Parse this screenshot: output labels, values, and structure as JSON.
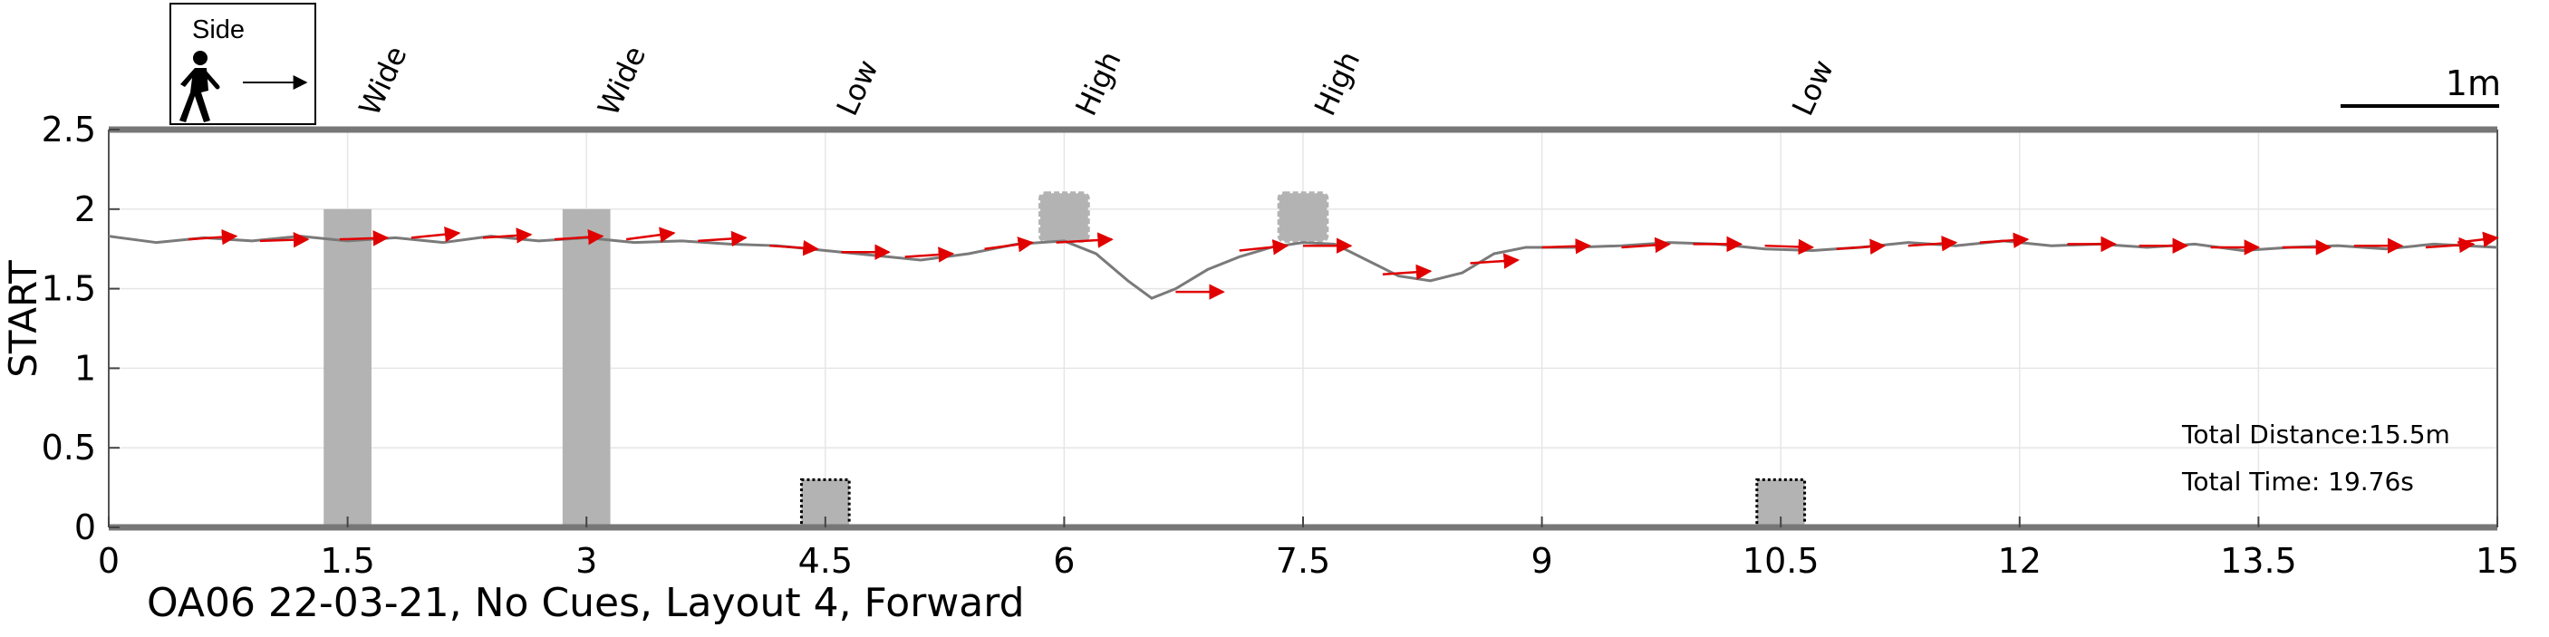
{
  "caption": "OA06 22-03-21, No Cues, Layout 4, Forward",
  "legend_box": {
    "label": "Side",
    "icon": "walking-person-icon"
  },
  "scale_bar": {
    "label": "1m",
    "length_m": 1
  },
  "annotations": {
    "total_distance": "Total Distance:15.5m",
    "total_time": "Total Time: 19.76s"
  },
  "colors": {
    "path": "#7a7a7a",
    "arrow": "#e00000",
    "obstacle": "#b3b3b3",
    "axis": "#777777",
    "grid": "#e6e6e6"
  },
  "chart_data": {
    "type": "line",
    "xlim": [
      0,
      15
    ],
    "ylim": [
      0,
      2.5
    ],
    "ylabel": "START",
    "xlabel": "",
    "grid": true,
    "xticks": [
      0,
      1.5,
      3,
      4.5,
      6,
      7.5,
      9,
      10.5,
      12,
      13.5,
      15
    ],
    "xtick_labels": [
      "0",
      "1.5",
      "3",
      "4.5",
      "6",
      "7.5",
      "9",
      "10.5",
      "12",
      "13.5",
      "15"
    ],
    "yticks": [
      0,
      0.5,
      1,
      1.5,
      2,
      2.5
    ],
    "ytick_labels": [
      "0",
      "0.5",
      "1",
      "1.5",
      "2",
      "2.5"
    ],
    "obstacles": [
      {
        "label": "Wide",
        "x": 1.5,
        "y0": 0,
        "y1": 2.0,
        "width": 0.3,
        "style": "solid"
      },
      {
        "label": "Wide",
        "x": 3.0,
        "y0": 0,
        "y1": 2.0,
        "width": 0.3,
        "style": "solid"
      },
      {
        "label": "Low",
        "x": 4.5,
        "y0": 0,
        "y1": 0.3,
        "width": 0.3,
        "style": "dotted"
      },
      {
        "label": "High",
        "x": 6.0,
        "y0": 1.8,
        "y1": 2.1,
        "width": 0.3,
        "style": "bumpy"
      },
      {
        "label": "High",
        "x": 7.5,
        "y0": 1.8,
        "y1": 2.1,
        "width": 0.3,
        "style": "bumpy"
      },
      {
        "label": "Low",
        "x": 10.5,
        "y0": 0,
        "y1": 0.3,
        "width": 0.3,
        "style": "dotted"
      }
    ],
    "path": {
      "x": [
        0,
        0.3,
        0.6,
        0.9,
        1.2,
        1.5,
        1.8,
        2.1,
        2.4,
        2.7,
        3.0,
        3.3,
        3.6,
        3.9,
        4.2,
        4.5,
        4.8,
        5.1,
        5.4,
        5.7,
        6.0,
        6.2,
        6.4,
        6.55,
        6.7,
        6.9,
        7.1,
        7.3,
        7.5,
        7.7,
        7.9,
        8.1,
        8.3,
        8.5,
        8.7,
        8.9,
        9.2,
        9.5,
        9.8,
        10.1,
        10.4,
        10.7,
        11.0,
        11.3,
        11.6,
        11.9,
        12.2,
        12.5,
        12.8,
        13.1,
        13.4,
        13.7,
        14.0,
        14.3,
        14.6,
        15.0
      ],
      "y": [
        1.83,
        1.79,
        1.82,
        1.8,
        1.83,
        1.8,
        1.82,
        1.79,
        1.83,
        1.8,
        1.82,
        1.79,
        1.8,
        1.78,
        1.77,
        1.74,
        1.71,
        1.68,
        1.72,
        1.78,
        1.8,
        1.72,
        1.55,
        1.44,
        1.5,
        1.62,
        1.7,
        1.76,
        1.79,
        1.78,
        1.68,
        1.58,
        1.55,
        1.6,
        1.72,
        1.76,
        1.76,
        1.77,
        1.79,
        1.78,
        1.75,
        1.74,
        1.76,
        1.79,
        1.77,
        1.8,
        1.77,
        1.78,
        1.76,
        1.78,
        1.74,
        1.76,
        1.77,
        1.75,
        1.78,
        1.76
      ]
    },
    "arrows": [
      {
        "x": 0.5,
        "y": 1.81,
        "dx": 0.3,
        "dy": 0.02
      },
      {
        "x": 0.95,
        "y": 1.8,
        "dx": 0.3,
        "dy": 0.01
      },
      {
        "x": 1.45,
        "y": 1.81,
        "dx": 0.3,
        "dy": 0.01
      },
      {
        "x": 1.9,
        "y": 1.82,
        "dx": 0.3,
        "dy": 0.03
      },
      {
        "x": 2.35,
        "y": 1.82,
        "dx": 0.3,
        "dy": 0.02
      },
      {
        "x": 2.8,
        "y": 1.81,
        "dx": 0.3,
        "dy": 0.02
      },
      {
        "x": 3.25,
        "y": 1.81,
        "dx": 0.3,
        "dy": 0.04
      },
      {
        "x": 3.7,
        "y": 1.8,
        "dx": 0.3,
        "dy": 0.02
      },
      {
        "x": 4.15,
        "y": 1.77,
        "dx": 0.3,
        "dy": -0.02
      },
      {
        "x": 4.6,
        "y": 1.73,
        "dx": 0.3,
        "dy": 0.0
      },
      {
        "x": 5.0,
        "y": 1.7,
        "dx": 0.3,
        "dy": 0.02
      },
      {
        "x": 5.5,
        "y": 1.75,
        "dx": 0.3,
        "dy": 0.04
      },
      {
        "x": 5.95,
        "y": 1.79,
        "dx": 0.35,
        "dy": 0.02
      },
      {
        "x": 6.7,
        "y": 1.48,
        "dx": 0.3,
        "dy": 0.0
      },
      {
        "x": 7.1,
        "y": 1.74,
        "dx": 0.3,
        "dy": 0.03
      },
      {
        "x": 7.5,
        "y": 1.77,
        "dx": 0.3,
        "dy": 0.0
      },
      {
        "x": 8.0,
        "y": 1.59,
        "dx": 0.3,
        "dy": 0.02
      },
      {
        "x": 8.55,
        "y": 1.66,
        "dx": 0.3,
        "dy": 0.02
      },
      {
        "x": 9.0,
        "y": 1.76,
        "dx": 0.3,
        "dy": 0.01
      },
      {
        "x": 9.5,
        "y": 1.76,
        "dx": 0.3,
        "dy": 0.02
      },
      {
        "x": 9.95,
        "y": 1.78,
        "dx": 0.3,
        "dy": 0.0
      },
      {
        "x": 10.4,
        "y": 1.77,
        "dx": 0.3,
        "dy": -0.01
      },
      {
        "x": 10.85,
        "y": 1.75,
        "dx": 0.3,
        "dy": 0.02
      },
      {
        "x": 11.3,
        "y": 1.77,
        "dx": 0.3,
        "dy": 0.02
      },
      {
        "x": 11.75,
        "y": 1.79,
        "dx": 0.3,
        "dy": 0.02
      },
      {
        "x": 12.3,
        "y": 1.78,
        "dx": 0.3,
        "dy": 0.0
      },
      {
        "x": 12.75,
        "y": 1.77,
        "dx": 0.3,
        "dy": 0.0
      },
      {
        "x": 13.2,
        "y": 1.76,
        "dx": 0.3,
        "dy": 0.0
      },
      {
        "x": 13.65,
        "y": 1.76,
        "dx": 0.3,
        "dy": 0.0
      },
      {
        "x": 14.1,
        "y": 1.77,
        "dx": 0.3,
        "dy": 0.0
      },
      {
        "x": 14.55,
        "y": 1.76,
        "dx": 0.3,
        "dy": 0.02
      },
      {
        "x": 14.75,
        "y": 1.79,
        "dx": 0.25,
        "dy": 0.03
      }
    ]
  }
}
